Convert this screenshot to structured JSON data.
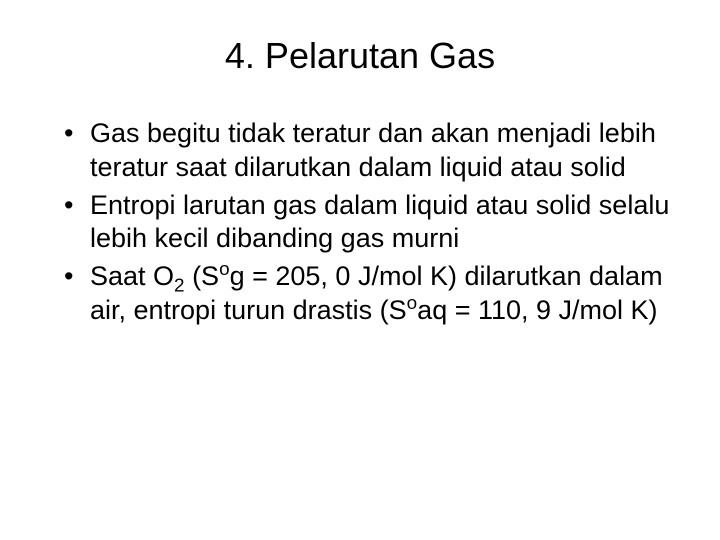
{
  "slide": {
    "title": "4. Pelarutan Gas",
    "bullets": [
      {
        "parts": [
          {
            "text": "Gas begitu tidak teratur dan akan menjadi lebih teratur saat dilarutkan dalam liquid atau solid"
          }
        ]
      },
      {
        "parts": [
          {
            "text": "Entropi larutan gas dalam liquid atau solid selalu lebih kecil dibanding gas murni"
          }
        ]
      },
      {
        "parts": [
          {
            "text": "Saat O"
          },
          {
            "text": "2",
            "style": "sub"
          },
          {
            "text": " (S"
          },
          {
            "text": "o",
            "style": "sup"
          },
          {
            "text": "g = 205, 0 J/mol K) dilarutkan dalam air, entropi turun drastis (S"
          },
          {
            "text": "o",
            "style": "sup"
          },
          {
            "text": "aq = 110, 9 J/mol K)"
          }
        ]
      }
    ]
  },
  "styling": {
    "background_color": "#ffffff",
    "text_color": "#000000",
    "title_fontsize": 36,
    "body_fontsize": 27,
    "font_family": "Arial"
  }
}
